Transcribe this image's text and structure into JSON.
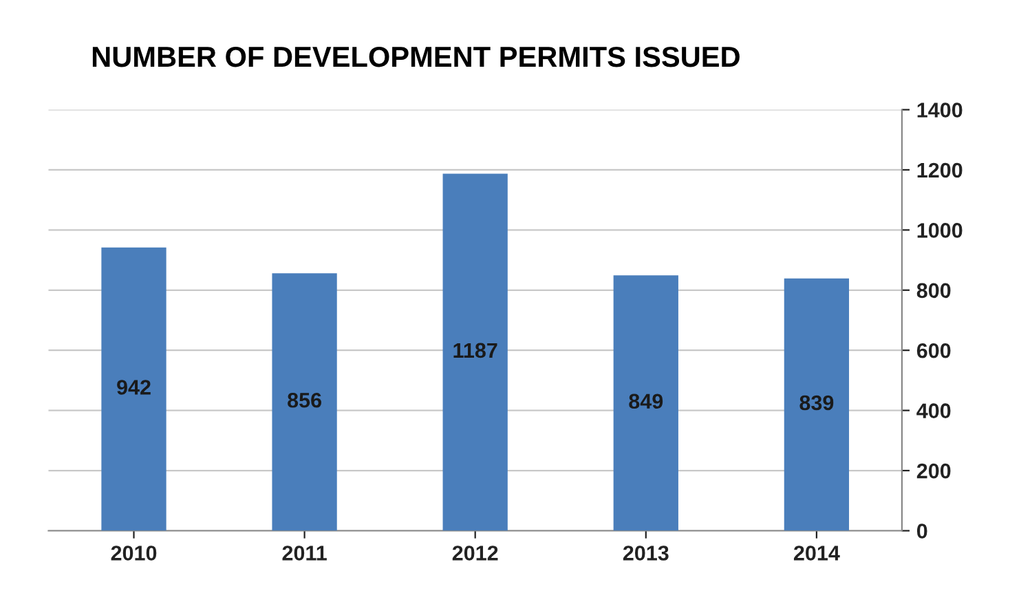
{
  "chart_data": {
    "type": "bar",
    "title": "NUMBER OF DEVELOPMENT PERMITS ISSUED",
    "categories": [
      "2010",
      "2011",
      "2012",
      "2013",
      "2014"
    ],
    "values": [
      942,
      856,
      1187,
      849,
      839
    ],
    "color": "#4a7ebb",
    "ylim": [
      0,
      1400
    ],
    "yticks": [
      0,
      200,
      400,
      600,
      800,
      1000,
      1200,
      1400
    ],
    "grid": "y",
    "data_labels": true
  }
}
